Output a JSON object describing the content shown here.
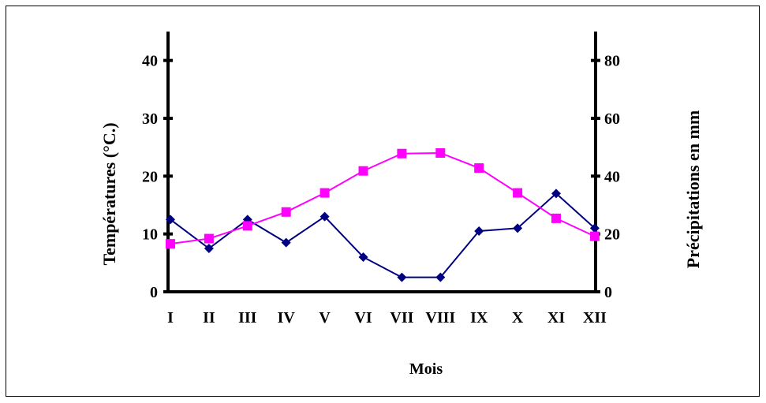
{
  "chart_data": {
    "type": "line",
    "categories": [
      "I",
      "II",
      "III",
      "IV",
      "V",
      "VI",
      "VII",
      "VIII",
      "IX",
      "X",
      "XI",
      "XII"
    ],
    "xlabel": "Mois",
    "ylabel_left": "Températures (°C.)",
    "ylabel_right": "Précipitations en mm",
    "ylim_left": [
      0,
      45
    ],
    "ylim_right": [
      0,
      90
    ],
    "yticks_left": [
      0,
      10,
      20,
      30,
      40
    ],
    "yticks_right": [
      0,
      20,
      40,
      60,
      80
    ],
    "grid": false,
    "legend": "none",
    "series": [
      {
        "axis": "right",
        "marker": "diamond",
        "color": "#000080",
        "values": [
          25,
          15,
          25,
          17,
          26,
          12,
          5,
          5,
          21,
          22,
          34,
          22
        ]
      },
      {
        "axis": "left",
        "marker": "square",
        "color": "#ff00ff",
        "values": [
          8.3,
          9.2,
          11.4,
          13.8,
          17.1,
          20.9,
          23.9,
          24.0,
          21.4,
          17.1,
          12.7,
          9.6
        ]
      }
    ]
  }
}
